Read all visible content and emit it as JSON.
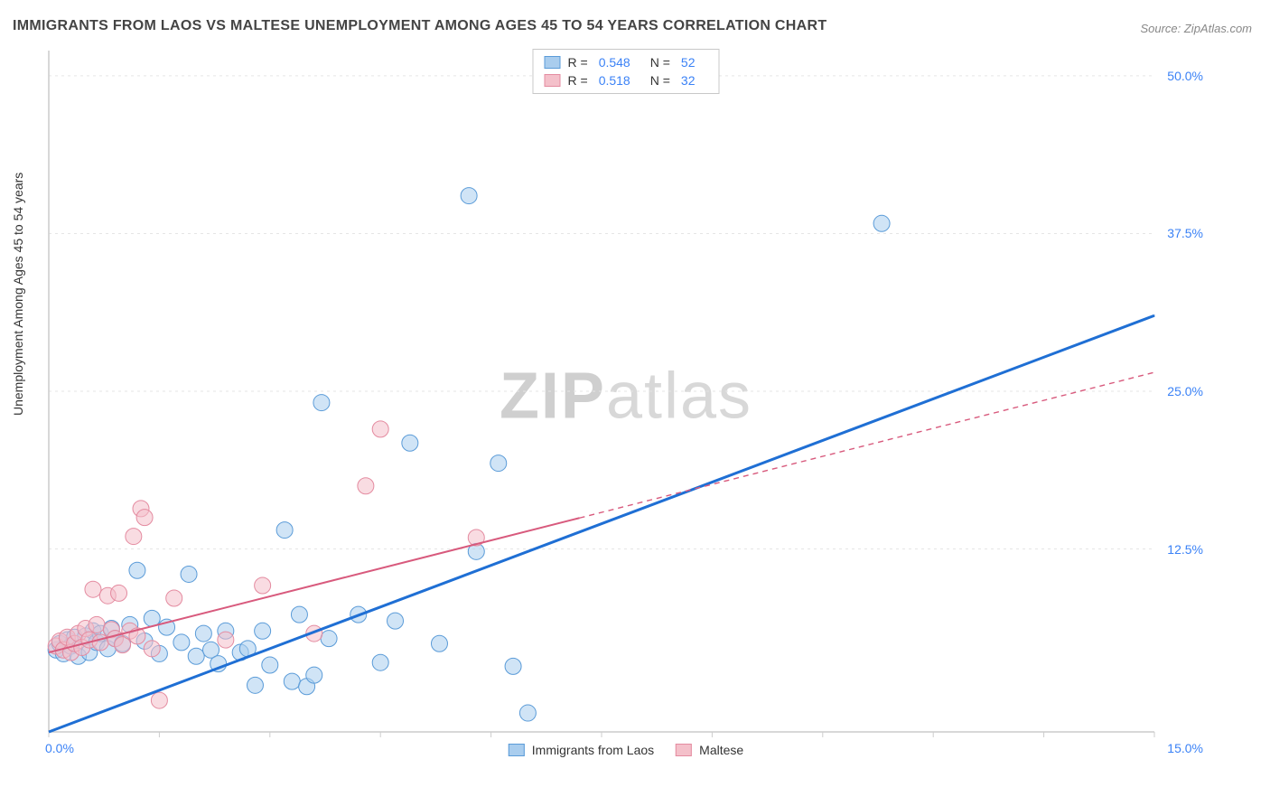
{
  "title": "IMMIGRANTS FROM LAOS VS MALTESE UNEMPLOYMENT AMONG AGES 45 TO 54 YEARS CORRELATION CHART",
  "source": "Source: ZipAtlas.com",
  "ylabel": "Unemployment Among Ages 45 to 54 years",
  "watermark_bold": "ZIP",
  "watermark_light": "atlas",
  "chart": {
    "type": "scatter",
    "background_color": "#ffffff",
    "grid_color": "#e5e5e5",
    "axis_color": "#cccccc",
    "xlim": [
      0,
      15
    ],
    "ylim": [
      -2,
      52
    ],
    "xticks": [
      0,
      1.5,
      3,
      4.5,
      6,
      7.5,
      9,
      10.5,
      12,
      13.5,
      15
    ],
    "ygrid": [
      12.5,
      25,
      37.5,
      50
    ],
    "y_labels": [
      {
        "val": 50,
        "text": "50.0%"
      },
      {
        "val": 37.5,
        "text": "37.5%"
      },
      {
        "val": 25,
        "text": "25.0%"
      },
      {
        "val": 12.5,
        "text": "12.5%"
      }
    ],
    "x_labels": [
      {
        "val": 0,
        "text": "0.0%"
      },
      {
        "val": 15,
        "text": "15.0%"
      }
    ],
    "marker_radius": 9,
    "marker_opacity": 0.55,
    "series": [
      {
        "name": "Immigrants from Laos",
        "color_fill": "#a9cdee",
        "color_stroke": "#5a9bd8",
        "trend_color": "#1f6fd4",
        "trend_width": 3,
        "trend_dash_after": 15,
        "trend": {
          "x0": 0,
          "y0": -2,
          "x1": 15,
          "y1": 31
        },
        "R": "0.548",
        "N": "52",
        "points": [
          [
            0.1,
            4.5
          ],
          [
            0.15,
            5
          ],
          [
            0.2,
            4.2
          ],
          [
            0.25,
            5.3
          ],
          [
            0.3,
            4.8
          ],
          [
            0.35,
            5.5
          ],
          [
            0.4,
            4.0
          ],
          [
            0.5,
            5.6
          ],
          [
            0.55,
            4.3
          ],
          [
            0.6,
            6.0
          ],
          [
            0.65,
            5.1
          ],
          [
            0.7,
            5.8
          ],
          [
            0.8,
            4.6
          ],
          [
            0.85,
            6.2
          ],
          [
            0.9,
            5.4
          ],
          [
            1.0,
            5.0
          ],
          [
            1.1,
            6.5
          ],
          [
            1.2,
            10.8
          ],
          [
            1.3,
            5.2
          ],
          [
            1.4,
            7.0
          ],
          [
            1.5,
            4.2
          ],
          [
            1.6,
            6.3
          ],
          [
            1.8,
            5.1
          ],
          [
            1.9,
            10.5
          ],
          [
            2.0,
            4.0
          ],
          [
            2.1,
            5.8
          ],
          [
            2.2,
            4.5
          ],
          [
            2.3,
            3.4
          ],
          [
            2.4,
            6.0
          ],
          [
            2.6,
            4.3
          ],
          [
            2.7,
            4.6
          ],
          [
            2.8,
            1.7
          ],
          [
            2.9,
            6.0
          ],
          [
            3.0,
            3.3
          ],
          [
            3.2,
            14.0
          ],
          [
            3.3,
            2.0
          ],
          [
            3.4,
            7.3
          ],
          [
            3.5,
            1.6
          ],
          [
            3.6,
            2.5
          ],
          [
            3.7,
            24.1
          ],
          [
            3.8,
            5.4
          ],
          [
            4.2,
            7.3
          ],
          [
            4.5,
            3.5
          ],
          [
            4.7,
            6.8
          ],
          [
            4.9,
            20.9
          ],
          [
            5.3,
            5.0
          ],
          [
            5.7,
            40.5
          ],
          [
            5.8,
            12.3
          ],
          [
            6.1,
            19.3
          ],
          [
            6.3,
            3.2
          ],
          [
            6.5,
            -0.5
          ],
          [
            11.3,
            38.3
          ]
        ]
      },
      {
        "name": "Maltese",
        "color_fill": "#f4c0ca",
        "color_stroke": "#e48ba0",
        "trend_color": "#d85a7d",
        "trend_width": 2,
        "trend_dash_after": 7.2,
        "trend": {
          "x0": 0,
          "y0": 4.3,
          "x1": 15,
          "y1": 26.5
        },
        "R": "0.518",
        "N": "32",
        "points": [
          [
            0.1,
            4.8
          ],
          [
            0.15,
            5.2
          ],
          [
            0.2,
            4.5
          ],
          [
            0.25,
            5.5
          ],
          [
            0.3,
            4.3
          ],
          [
            0.35,
            5.0
          ],
          [
            0.4,
            5.8
          ],
          [
            0.45,
            4.7
          ],
          [
            0.5,
            6.2
          ],
          [
            0.55,
            5.3
          ],
          [
            0.6,
            9.3
          ],
          [
            0.65,
            6.5
          ],
          [
            0.7,
            5.1
          ],
          [
            0.8,
            8.8
          ],
          [
            0.85,
            6.1
          ],
          [
            0.9,
            5.4
          ],
          [
            0.95,
            9.0
          ],
          [
            1.0,
            4.9
          ],
          [
            1.1,
            6.0
          ],
          [
            1.15,
            13.5
          ],
          [
            1.2,
            5.6
          ],
          [
            1.25,
            15.7
          ],
          [
            1.3,
            15.0
          ],
          [
            1.4,
            4.6
          ],
          [
            1.5,
            0.5
          ],
          [
            1.7,
            8.6
          ],
          [
            2.4,
            5.3
          ],
          [
            2.9,
            9.6
          ],
          [
            3.6,
            5.8
          ],
          [
            4.3,
            17.5
          ],
          [
            4.5,
            22.0
          ],
          [
            5.8,
            13.4
          ]
        ]
      }
    ]
  },
  "legend_top": {
    "r_prefix": "R =",
    "n_prefix": "N ="
  },
  "legend_bottom": {
    "items": [
      "Immigrants from Laos",
      "Maltese"
    ]
  }
}
